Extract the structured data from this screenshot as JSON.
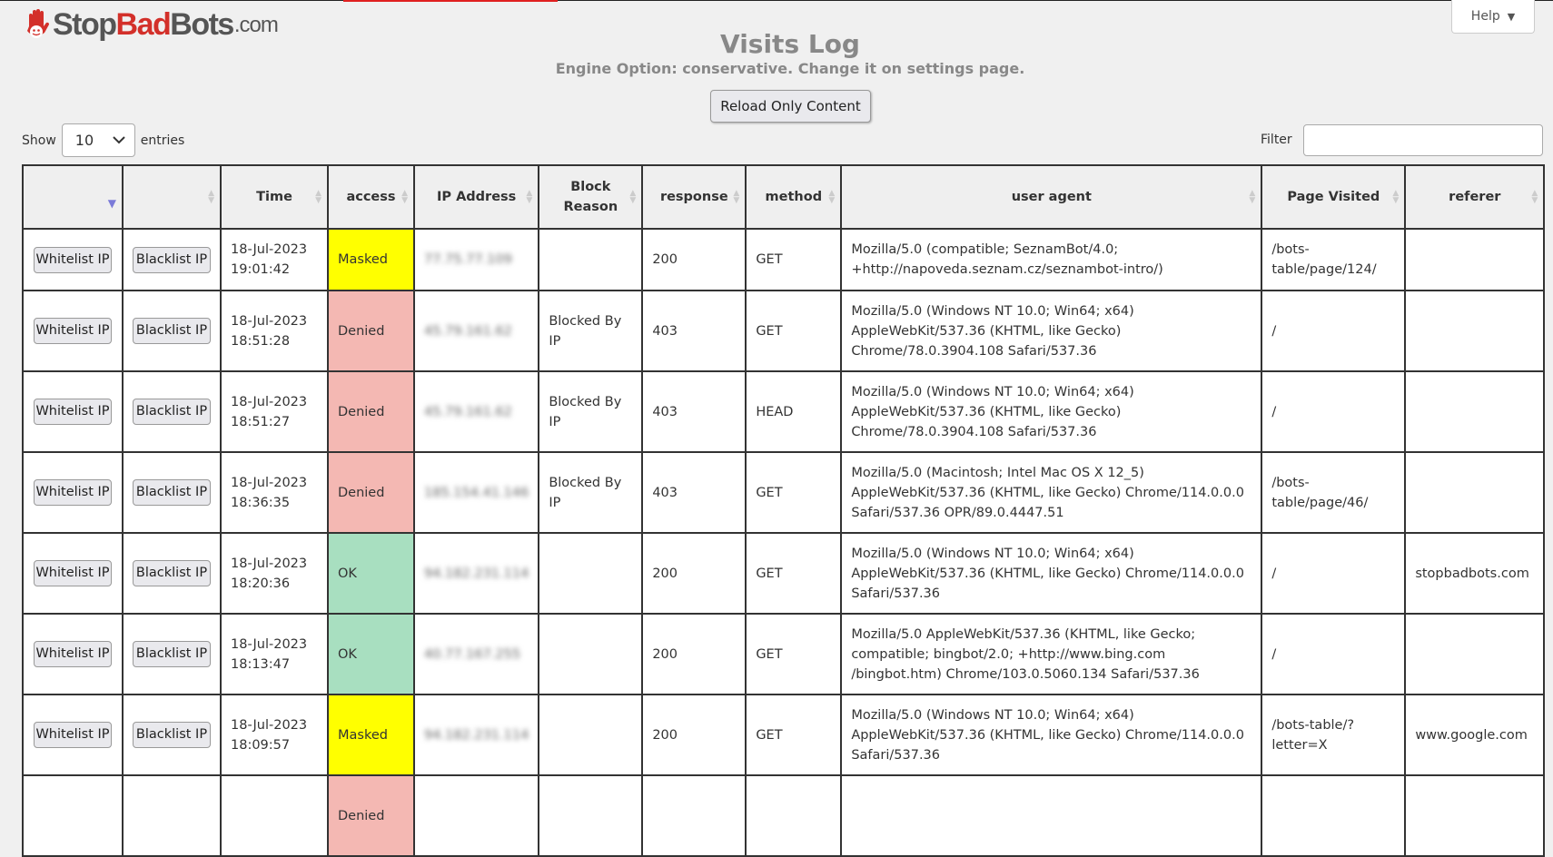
{
  "logo": {
    "part1": "Stop",
    "part2": "Bad",
    "part3": "Bots",
    "suffix": ".com"
  },
  "help": {
    "label": "Help",
    "icon": "caret-down-icon"
  },
  "page": {
    "title": "Visits Log",
    "subtitle": "Engine Option: conservative. Change it on settings page.",
    "reload_label": "Reload Only Content"
  },
  "controls": {
    "show_label": "Show",
    "entries_value": "10",
    "entries_label": "entries",
    "filter_label": "Filter",
    "filter_value": ""
  },
  "colors": {
    "Masked": "#ffff00",
    "Denied": "#f4b8b3",
    "OK": "#a8dfc0"
  },
  "table": {
    "headers": [
      "",
      "",
      "Time",
      "access",
      "IP Address",
      "Block Reason",
      "response",
      "method",
      "user agent",
      "Page Visited",
      "referer"
    ],
    "rows": [
      {
        "whitelist": "Whitelist IP",
        "blacklist": "Blacklist IP",
        "date": "18-Jul-2023",
        "time": "19:01:42",
        "access": "Masked",
        "ip": "77.75.77.109",
        "reason": "",
        "response": "200",
        "method": "GET",
        "ua": "Mozilla/5.0 (compatible; SeznamBot/4.0; +http://napoveda.seznam.cz/seznambot-intro/)",
        "page": "/bots-table/page/124/",
        "referer": ""
      },
      {
        "whitelist": "Whitelist IP",
        "blacklist": "Blacklist IP",
        "date": "18-Jul-2023",
        "time": "18:51:28",
        "access": "Denied",
        "ip": "45.79.161.62",
        "reason": "Blocked By IP",
        "response": "403",
        "method": "GET",
        "ua": "Mozilla/5.0 (Windows NT 10.0; Win64; x64) AppleWebKit/537.36 (KHTML, like Gecko) Chrome/78.0.3904.108 Safari/537.36",
        "page": "/",
        "referer": ""
      },
      {
        "whitelist": "Whitelist IP",
        "blacklist": "Blacklist IP",
        "date": "18-Jul-2023",
        "time": "18:51:27",
        "access": "Denied",
        "ip": "45.79.161.62",
        "reason": "Blocked By IP",
        "response": "403",
        "method": "HEAD",
        "ua": "Mozilla/5.0 (Windows NT 10.0; Win64; x64) AppleWebKit/537.36 (KHTML, like Gecko) Chrome/78.0.3904.108 Safari/537.36",
        "page": "/",
        "referer": ""
      },
      {
        "whitelist": "Whitelist IP",
        "blacklist": "Blacklist IP",
        "date": "18-Jul-2023",
        "time": "18:36:35",
        "access": "Denied",
        "ip": "185.154.41.146",
        "reason": "Blocked By IP",
        "response": "403",
        "method": "GET",
        "ua": "Mozilla/5.0 (Macintosh; Intel Mac OS X 12_5) AppleWebKit/537.36 (KHTML, like Gecko) Chrome/114.0.0.0 Safari/537.36 OPR/89.0.4447.51",
        "page": "/bots-table/page/46/",
        "referer": ""
      },
      {
        "whitelist": "Whitelist IP",
        "blacklist": "Blacklist IP",
        "date": "18-Jul-2023",
        "time": "18:20:36",
        "access": "OK",
        "ip": "94.182.231.114",
        "reason": "",
        "response": "200",
        "method": "GET",
        "ua": "Mozilla/5.0 (Windows NT 10.0; Win64; x64) AppleWebKit/537.36 (KHTML, like Gecko) Chrome/114.0.0.0 Safari/537.36",
        "page": "/",
        "referer": "stopbadbots.com"
      },
      {
        "whitelist": "Whitelist IP",
        "blacklist": "Blacklist IP",
        "date": "18-Jul-2023",
        "time": "18:13:47",
        "access": "OK",
        "ip": "40.77.167.255",
        "reason": "",
        "response": "200",
        "method": "GET",
        "ua": "Mozilla/5.0 AppleWebKit/537.36 (KHTML, like Gecko; compatible; bingbot/2.0; +http://www.bing.com /bingbot.htm) Chrome/103.0.5060.134 Safari/537.36",
        "page": "/",
        "referer": ""
      },
      {
        "whitelist": "Whitelist IP",
        "blacklist": "Blacklist IP",
        "date": "18-Jul-2023",
        "time": "18:09:57",
        "access": "Masked",
        "ip": "94.182.231.114",
        "reason": "",
        "response": "200",
        "method": "GET",
        "ua": "Mozilla/5.0 (Windows NT 10.0; Win64; x64) AppleWebKit/537.36 (KHTML, like Gecko) Chrome/114.0.0.0 Safari/537.36",
        "page": "/bots-table/?letter=X",
        "referer": "www.google.com"
      },
      {
        "whitelist": "",
        "blacklist": "",
        "date": "",
        "time": "",
        "access": "Denied",
        "ip": "",
        "reason": "",
        "response": "",
        "method": "",
        "ua": "",
        "page": "",
        "referer": ""
      }
    ]
  }
}
